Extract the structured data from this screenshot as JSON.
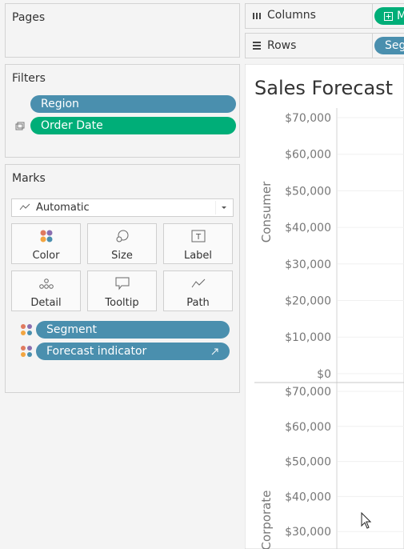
{
  "pages": {
    "title": "Pages"
  },
  "shelves": {
    "columns": {
      "label": "Columns",
      "pill": "M"
    },
    "rows": {
      "label": "Rows",
      "pill": "Seg"
    }
  },
  "filters": {
    "title": "Filters",
    "items": [
      "Region",
      "Order Date"
    ]
  },
  "marks": {
    "title": "Marks",
    "mark_type": "Automatic",
    "buttons": [
      "Color",
      "Size",
      "Label",
      "Detail",
      "Tooltip",
      "Path"
    ],
    "fields": [
      "Segment",
      "Forecast indicator"
    ]
  },
  "view": {
    "title": "Sales Forecast",
    "panes": [
      {
        "label": "Consumer",
        "ticks": [
          "$70,000",
          "$60,000",
          "$50,000",
          "$40,000",
          "$30,000",
          "$20,000",
          "$10,000",
          "$0"
        ]
      },
      {
        "label": "Corporate",
        "ticks": [
          "$70,000",
          "$60,000",
          "$50,000",
          "$40,000",
          "$30,000"
        ]
      }
    ]
  }
}
